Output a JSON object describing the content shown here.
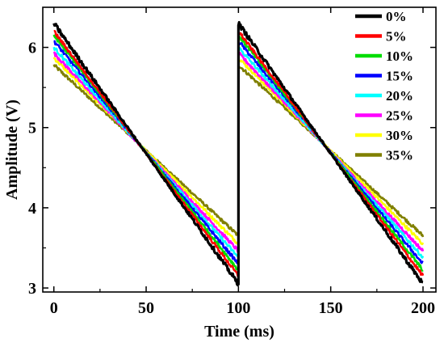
{
  "chart_data": {
    "type": "line",
    "title": "",
    "xlabel": "Time (ms)",
    "ylabel": "Amplitude (V)",
    "xlim": [
      -6,
      207
    ],
    "ylim": [
      2.95,
      6.5
    ],
    "xticks": [
      0,
      50,
      100,
      150,
      200
    ],
    "yticks": [
      3,
      4,
      5,
      6
    ],
    "grid": false,
    "legend_position": "top-right",
    "period_ms": 100,
    "series": [
      {
        "name": "0%",
        "color": "#000000",
        "x": [
          0,
          100,
          100,
          200
        ],
        "y": [
          6.3,
          3.05,
          6.3,
          3.05
        ]
      },
      {
        "name": "5%",
        "color": "#ff0000",
        "x": [
          0,
          100,
          100,
          200
        ],
        "y": [
          6.2,
          3.15,
          6.2,
          3.15
        ]
      },
      {
        "name": "10%",
        "color": "#00dd00",
        "x": [
          0,
          100,
          100,
          200
        ],
        "y": [
          6.15,
          3.22,
          6.15,
          3.22
        ]
      },
      {
        "name": "15%",
        "color": "#0000ff",
        "x": [
          0,
          100,
          100,
          200
        ],
        "y": [
          6.08,
          3.3,
          6.08,
          3.3
        ]
      },
      {
        "name": "20%",
        "color": "#00ffff",
        "x": [
          0,
          100,
          100,
          200
        ],
        "y": [
          6.0,
          3.38,
          6.0,
          3.38
        ]
      },
      {
        "name": "25%",
        "color": "#ff00ff",
        "x": [
          0,
          100,
          100,
          200
        ],
        "y": [
          5.93,
          3.46,
          5.93,
          3.46
        ]
      },
      {
        "name": "30%",
        "color": "#ffff00",
        "x": [
          0,
          100,
          100,
          200
        ],
        "y": [
          5.87,
          3.55,
          5.87,
          3.55
        ]
      },
      {
        "name": "35%",
        "color": "#808000",
        "x": [
          0,
          100,
          100,
          200
        ],
        "y": [
          5.78,
          3.65,
          5.78,
          3.65
        ]
      }
    ]
  }
}
